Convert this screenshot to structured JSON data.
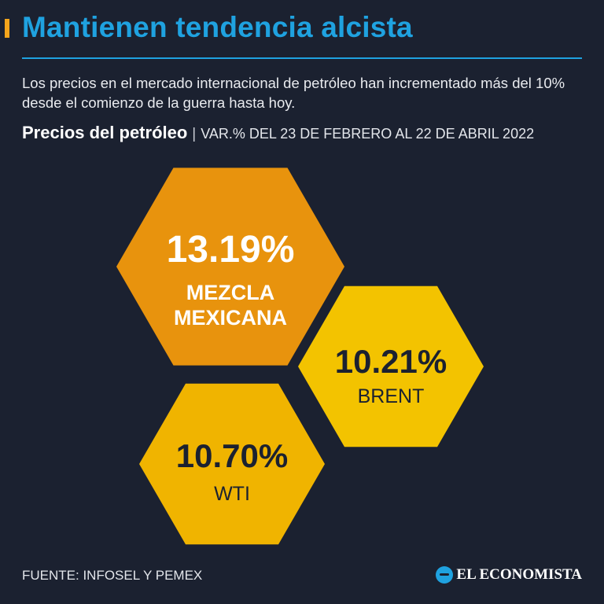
{
  "header": {
    "title": "Mantienen tendencia alcista",
    "subtitle": "Los precios en el mercado internacional de petróleo han incrementado más del 10% desde el comienzo de la guerra hasta hoy.",
    "chart_heading": "Precios del petróleo",
    "separator": "|",
    "chart_period": "VAR.% DEL 23 DE FEBRERO AL 22 DE ABRIL 2022"
  },
  "chart_data": {
    "type": "other",
    "title": "Precios del petróleo",
    "subtitle": "VAR.% DEL 23 DE FEBRERO AL 22 DE ABRIL 2022",
    "unit": "%",
    "categories": [
      "MEZCLA MEXICANA",
      "BRENT",
      "WTI"
    ],
    "values": [
      13.19,
      10.21,
      10.7
    ],
    "value_labels": [
      "13.19%",
      "10.21%",
      "10.70%"
    ],
    "label_lines": [
      [
        "MEZCLA",
        "MEXICANA"
      ],
      [
        "BRENT"
      ],
      [
        "WTI"
      ]
    ],
    "colors": [
      "#e8930d",
      "#f3c300",
      "#f0b400"
    ]
  },
  "footer": {
    "source": "FUENTE: INFOSEL Y PEMEX",
    "brand": "EL ECONOMISTA"
  },
  "colors": {
    "background": "#1b2130",
    "title": "#1fa2e0",
    "accent": "#f5a51c",
    "value_text": "#1b2130"
  }
}
